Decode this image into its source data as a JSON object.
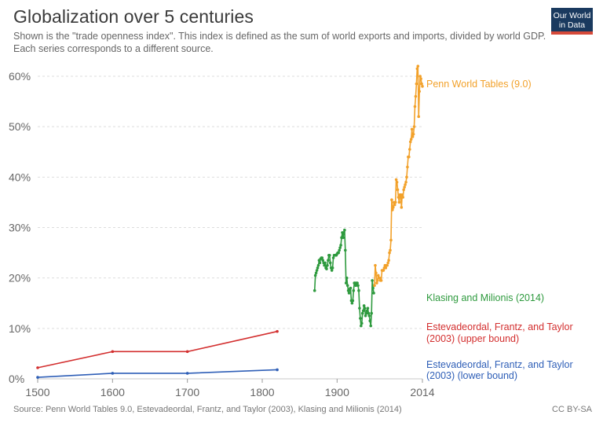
{
  "header": {
    "title": "Globalization over 5 centuries",
    "subtitle": "Shown is the \"trade openness index\". This index is defined as the sum of world exports and imports, divided by world GDP. Each series corresponds to a different source.",
    "logo_line1": "Our World",
    "logo_line2": "in Data"
  },
  "footer": {
    "source": "Source: Penn World Tables 9.0, Estevadeordal, Frantz, and Taylor (2003), Klasing and Milionis (2014)",
    "license": "CC BY-SA"
  },
  "colors": {
    "penn": "#f2a12a",
    "klasing": "#2e9a3e",
    "upper": "#d32f2f",
    "lower": "#2f5fb7",
    "grid": "#dddddd"
  },
  "chart_data": {
    "type": "line",
    "title": "Globalization over 5 centuries",
    "xlabel": "",
    "ylabel": "",
    "xlim": [
      1500,
      2014
    ],
    "ylim": [
      0,
      60
    ],
    "x_ticks": [
      "1500",
      "1600",
      "1700",
      "1800",
      "1900",
      "2014"
    ],
    "y_ticks": [
      "0%",
      "10%",
      "20%",
      "30%",
      "40%",
      "50%",
      "60%"
    ],
    "grid": true,
    "series": [
      {
        "name": "Estevadeordal, Frantz, and Taylor (2003) (lower bound)",
        "color": "#2f5fb7",
        "x": [
          1500,
          1600,
          1700,
          1820
        ],
        "y": [
          0.3,
          1.1,
          1.1,
          1.8
        ]
      },
      {
        "name": "Estevadeordal, Frantz, and Taylor (2003) (upper bound)",
        "color": "#d32f2f",
        "x": [
          1500,
          1600,
          1700,
          1820
        ],
        "y": [
          2.2,
          5.4,
          5.4,
          9.4
        ]
      },
      {
        "name": "Klasing and Milionis (2014)",
        "color": "#2e9a3e",
        "x": [
          1870,
          1871,
          1872,
          1873,
          1874,
          1875,
          1876,
          1877,
          1878,
          1879,
          1880,
          1881,
          1882,
          1883,
          1884,
          1885,
          1886,
          1887,
          1888,
          1889,
          1890,
          1891,
          1892,
          1893,
          1894,
          1895,
          1896,
          1897,
          1898,
          1899,
          1900,
          1901,
          1902,
          1903,
          1904,
          1905,
          1906,
          1907,
          1908,
          1909,
          1910,
          1911,
          1912,
          1913,
          1914,
          1915,
          1916,
          1917,
          1918,
          1919,
          1920,
          1921,
          1922,
          1923,
          1924,
          1925,
          1926,
          1927,
          1928,
          1929,
          1930,
          1931,
          1932,
          1933,
          1934,
          1935,
          1936,
          1937,
          1938,
          1939,
          1940,
          1941,
          1942,
          1943,
          1944,
          1945,
          1946,
          1947,
          1948,
          1949
        ],
        "y": [
          17.5,
          20.5,
          21.0,
          21.5,
          22.0,
          22.5,
          23.5,
          23.0,
          23.8,
          24.0,
          24.0,
          23.5,
          23.0,
          22.5,
          23.0,
          22.0,
          21.8,
          22.5,
          23.5,
          24.5,
          24.5,
          23.0,
          22.0,
          21.5,
          22.0,
          24.0,
          24.5,
          24.5,
          24.5,
          24.5,
          24.8,
          25.0,
          25.0,
          25.5,
          26.0,
          26.5,
          28.0,
          29.0,
          28.0,
          29.0,
          29.5,
          25.5,
          19.0,
          20.0,
          18.5,
          17.5,
          17.0,
          17.8,
          18.0,
          15.5,
          15.0,
          15.5,
          17.5,
          19.0,
          19.0,
          18.5,
          19.0,
          19.0,
          18.5,
          17.5,
          14.0,
          12.0,
          10.5,
          11.0,
          13.0,
          13.5,
          14.5,
          14.0,
          12.5,
          13.0,
          13.5,
          14.0,
          13.0,
          12.5,
          11.5,
          10.5,
          13.0,
          19.5,
          18.0,
          17.0
        ]
      },
      {
        "name": "Penn World Tables (9.0)",
        "color": "#f2a12a",
        "x": [
          1950,
          1951,
          1952,
          1953,
          1954,
          1955,
          1956,
          1957,
          1958,
          1959,
          1960,
          1961,
          1962,
          1963,
          1964,
          1965,
          1966,
          1967,
          1968,
          1969,
          1970,
          1971,
          1972,
          1973,
          1974,
          1975,
          1976,
          1977,
          1978,
          1979,
          1980,
          1981,
          1982,
          1983,
          1984,
          1985,
          1986,
          1987,
          1988,
          1989,
          1990,
          1991,
          1992,
          1993,
          1994,
          1995,
          1996,
          1997,
          1998,
          1999,
          2000,
          2001,
          2002,
          2003,
          2004,
          2005,
          2006,
          2007,
          2008,
          2009,
          2010,
          2011,
          2012,
          2013,
          2014
        ],
        "y": [
          18.5,
          22.5,
          21.0,
          19.0,
          19.5,
          20.5,
          20.0,
          20.0,
          19.5,
          19.5,
          21.5,
          21.5,
          21.5,
          22.0,
          22.5,
          22.0,
          22.5,
          22.5,
          23.0,
          23.5,
          25.0,
          25.5,
          27.5,
          35.5,
          33.5,
          34.0,
          35.0,
          34.5,
          35.0,
          39.5,
          39.0,
          37.5,
          36.0,
          35.0,
          36.5,
          36.5,
          34.0,
          36.5,
          36.0,
          37.5,
          38.0,
          38.5,
          39.0,
          40.0,
          42.0,
          44.0,
          44.0,
          45.5,
          47.0,
          47.5,
          49.5,
          48.0,
          48.5,
          50.0,
          54.0,
          56.0,
          58.5,
          61.5,
          62.0,
          52.0,
          57.0,
          60.0,
          59.5,
          58.5,
          58.0
        ]
      }
    ],
    "labels": {
      "penn": "Penn World Tables (9.0)",
      "klasing": "Klasing and Milionis (2014)",
      "upper_line1": "Estevadeordal, Frantz, and Taylor",
      "upper_line2": "(2003) (upper bound)",
      "lower_line1": "Estevadeordal, Frantz, and Taylor",
      "lower_line2": "(2003) (lower bound)"
    }
  }
}
